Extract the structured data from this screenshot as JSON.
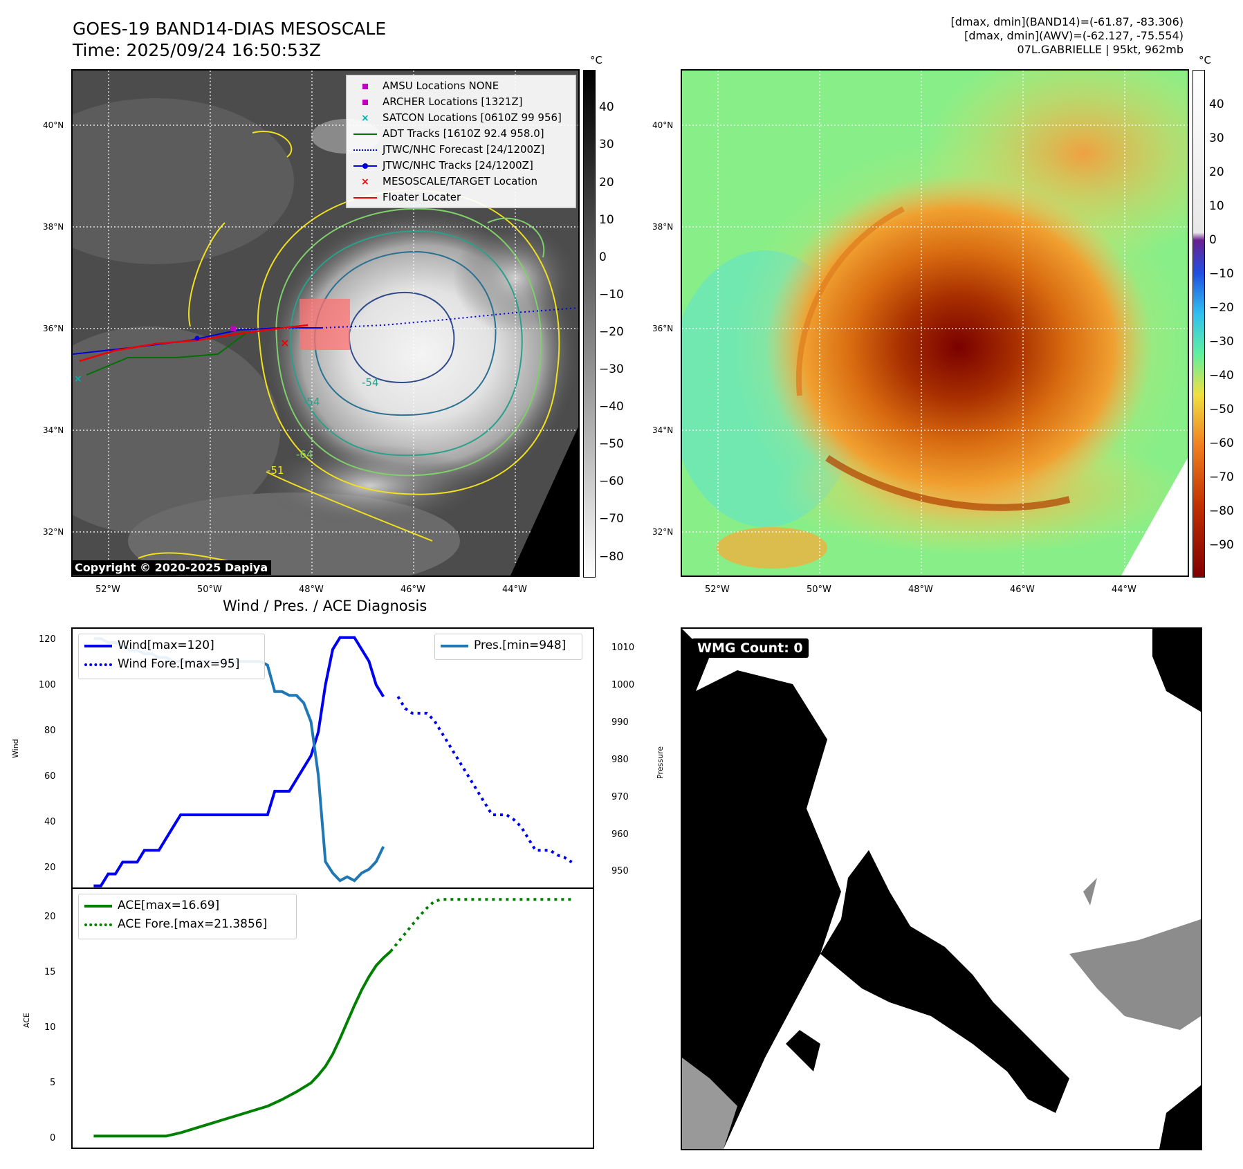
{
  "header": {
    "title_line1": "GOES-19 BAND14-DIAS MESOSCALE",
    "title_line2": "Time: 2025/09/24 16:50:53Z",
    "info_line1": "[dmax, dmin](BAND14)=(-61.87, -83.306)",
    "info_line2": "[dmax, dmin](AWV)=(-62.127, -75.554)",
    "info_line3": "07L.GABRIELLE | 95kt, 962mb"
  },
  "map": {
    "lat_labels": [
      "40°N",
      "38°N",
      "36°N",
      "34°N",
      "32°N"
    ],
    "lon_labels": [
      "52°W",
      "50°W",
      "48°W",
      "46°W",
      "44°W"
    ],
    "copyright": "Copyright © 2020-2025 Dapiya",
    "contour_labels": [
      "-54",
      "-54",
      "-64",
      "-51"
    ],
    "legend": [
      {
        "label": "AMSU Locations NONE",
        "color": "#c000c0",
        "icon": "square-marker"
      },
      {
        "label": "ARCHER Locations [1321Z]",
        "color": "#c000c0",
        "icon": "square-marker"
      },
      {
        "label": "SATCON Locations [0610Z 99 956]",
        "color": "#00b0b0",
        "icon": "x-marker"
      },
      {
        "label": "ADT Tracks [1610Z 92.4 958.0]",
        "color": "#007000",
        "icon": "solid-line"
      },
      {
        "label": "JTWC/NHC Forecast [24/1200Z]",
        "color": "#0000dd",
        "icon": "dotted-line"
      },
      {
        "label": "JTWC/NHC Tracks [24/1200Z]",
        "color": "#0000dd",
        "icon": "line-dot"
      },
      {
        "label": "MESOSCALE/TARGET Location",
        "color": "#ee0000",
        "icon": "x-marker"
      },
      {
        "label": "Floater Locater",
        "color": "#ee0000",
        "icon": "solid-line"
      }
    ]
  },
  "colorbars": {
    "unit": "°C",
    "left_ticks": [
      "40",
      "30",
      "20",
      "10",
      "0",
      "−10",
      "−20",
      "−30",
      "−40",
      "−50",
      "−60",
      "−70",
      "−80"
    ],
    "right_ticks": [
      "40",
      "30",
      "20",
      "10",
      "0",
      "−10",
      "−20",
      "−30",
      "−40",
      "−50",
      "−60",
      "−70",
      "−80",
      "−90"
    ]
  },
  "diag": {
    "title": "Wind / Pres. / ACE Diagnosis",
    "wind_ylabel": "Wind",
    "pres_ylabel": "Pressure",
    "ace_ylabel": "ACE",
    "wind_ticks": [
      "120",
      "100",
      "80",
      "60",
      "40",
      "20"
    ],
    "pres_ticks": [
      "1010",
      "1000",
      "990",
      "980",
      "970",
      "960",
      "950"
    ],
    "ace_ticks": [
      "20",
      "15",
      "10",
      "5",
      "0"
    ],
    "legend_wind": "Wind[max=120]",
    "legend_wind_fore": "Wind Fore.[max=95]",
    "legend_pres": "Pres.[min=948]",
    "legend_ace": "ACE[max=16.69]",
    "legend_ace_fore": "ACE Fore.[max=21.3856]"
  },
  "wmg": {
    "label": "WMG Count: 0"
  },
  "chart_data": {
    "type": "line",
    "title": "Wind / Pres. / ACE Diagnosis",
    "x": [
      0,
      1,
      2,
      3,
      4,
      5,
      6,
      7,
      8,
      9,
      10,
      11,
      12,
      13,
      14,
      15,
      16,
      17,
      18,
      19,
      20,
      21,
      22,
      23,
      24,
      25,
      26,
      27,
      28,
      29,
      30,
      31,
      32,
      33,
      34,
      35,
      36,
      37,
      38,
      39,
      40,
      41,
      42,
      43,
      44,
      45,
      46,
      47,
      48,
      49,
      50,
      51,
      52,
      53,
      54,
      55,
      56,
      57,
      58,
      59,
      60,
      61,
      62,
      63,
      64,
      65,
      66
    ],
    "xlim": [
      -3,
      69
    ],
    "wind": {
      "ylim": [
        14,
        124
      ],
      "series": [
        {
          "name": "Wind[max=120]",
          "color": "#0000ee",
          "style": "solid",
          "x": [
            0,
            1,
            2,
            3,
            4,
            5,
            6,
            7,
            8,
            9,
            10,
            11,
            12,
            13,
            14,
            15,
            16,
            17,
            18,
            19,
            20,
            21,
            22,
            23,
            24,
            25,
            26,
            27,
            28,
            29,
            30,
            31,
            32,
            33,
            34,
            35,
            36,
            37,
            38,
            39,
            40,
            41,
            42,
            43
          ],
          "values": [
            15,
            15,
            20,
            20,
            25,
            25,
            25,
            30,
            30,
            30,
            35,
            40,
            45,
            45,
            45,
            45,
            45,
            45,
            45,
            45,
            45,
            45,
            45,
            45,
            45,
            55,
            55,
            55,
            60,
            65,
            70,
            80,
            100,
            115,
            120,
            120,
            120,
            115,
            110,
            100,
            95,
            null,
            null,
            null
          ]
        },
        {
          "name": "Wind Fore.[max=95]",
          "color": "#0000ee",
          "style": "dotted",
          "x": [
            42,
            43,
            44,
            45,
            46,
            47,
            48,
            49,
            50,
            51,
            52,
            53,
            54,
            55,
            56,
            57,
            58,
            59,
            60,
            61,
            62,
            63,
            64,
            65,
            66
          ],
          "values": [
            95,
            90,
            88,
            88,
            88,
            85,
            80,
            75,
            70,
            65,
            60,
            55,
            50,
            45,
            45,
            45,
            43,
            40,
            35,
            30,
            30,
            30,
            28,
            27,
            25
          ]
        }
      ]
    },
    "pressure": {
      "ylim": [
        946,
        1014.8
      ],
      "series": [
        {
          "name": "Pres.[min=948]",
          "color": "#1f77b4",
          "style": "solid",
          "x": [
            0,
            1,
            2,
            3,
            4,
            5,
            6,
            7,
            8,
            9,
            10,
            11,
            12,
            13,
            14,
            15,
            16,
            17,
            18,
            19,
            20,
            21,
            22,
            23,
            24,
            25,
            26,
            27,
            28,
            29,
            30,
            31,
            32,
            33,
            34,
            35,
            36,
            37,
            38,
            39,
            40,
            41,
            42
          ],
          "values": [
            1012,
            1012,
            1011,
            1011,
            1010,
            1009,
            1009,
            1008,
            1008,
            1007,
            1007,
            1006,
            1006,
            1006,
            1006,
            1006,
            1006,
            1006,
            1006,
            1006,
            1006,
            1006,
            1006,
            1006,
            1005,
            998,
            998,
            997,
            997,
            995,
            990,
            976,
            953,
            950,
            948,
            949,
            948,
            950,
            951,
            953,
            957,
            null,
            null
          ]
        }
      ]
    },
    "ace": {
      "ylim": [
        -1.1,
        22.4
      ],
      "series": [
        {
          "name": "ACE[max=16.69]",
          "color": "#008000",
          "style": "solid",
          "x": [
            0,
            2,
            4,
            6,
            8,
            10,
            12,
            14,
            16,
            18,
            20,
            22,
            24,
            26,
            28,
            30,
            31,
            32,
            33,
            34,
            35,
            36,
            37,
            38,
            39,
            40,
            41,
            42,
            43
          ],
          "values": [
            0,
            0,
            0,
            0,
            0,
            0,
            0.3,
            0.7,
            1.1,
            1.5,
            1.9,
            2.3,
            2.7,
            3.3,
            4.0,
            4.8,
            5.5,
            6.3,
            7.4,
            8.8,
            10.3,
            11.8,
            13.2,
            14.4,
            15.4,
            16.1,
            16.69,
            null,
            null
          ]
        },
        {
          "name": "ACE Fore.[max=21.3856]",
          "color": "#008000",
          "style": "dotted",
          "x": [
            41,
            42,
            43,
            44,
            45,
            46,
            47,
            48,
            50,
            52,
            54,
            56,
            58,
            60,
            62,
            64,
            66
          ],
          "values": [
            16.69,
            17.5,
            18.3,
            19.1,
            19.9,
            20.6,
            21.2,
            21.3856,
            21.3856,
            21.3856,
            21.3856,
            21.3856,
            21.3856,
            21.3856,
            21.3856,
            21.3856,
            21.3856
          ]
        }
      ]
    }
  }
}
